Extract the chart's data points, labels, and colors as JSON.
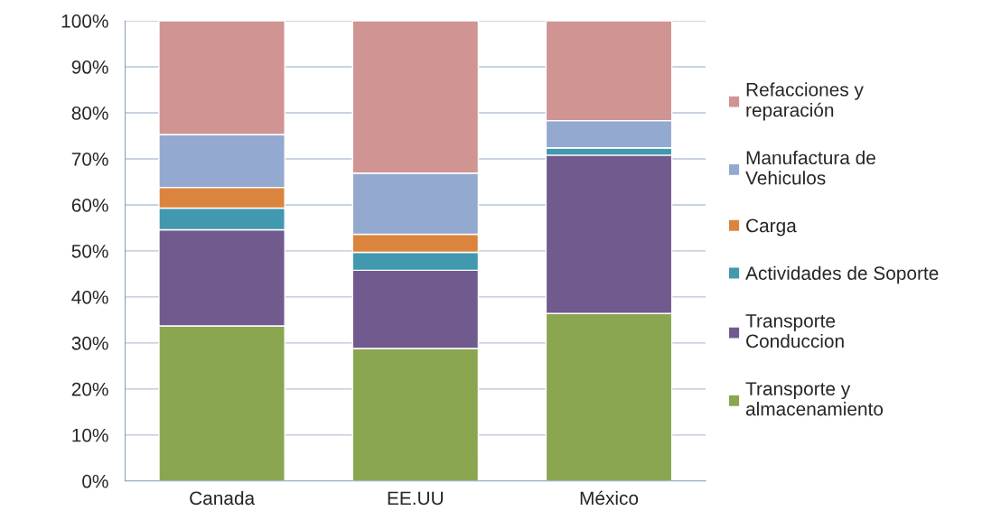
{
  "chart_data": {
    "type": "bar",
    "stacked": true,
    "categories": [
      "Canada",
      "EE.UU",
      "México"
    ],
    "series": [
      {
        "name": "Transporte y\nalmacenamiento",
        "color": "#8ba650",
        "values": [
          33.7,
          28.8,
          36.4
        ]
      },
      {
        "name": "Transporte\nConduccion",
        "color": "#715a8e",
        "values": [
          20.9,
          17.0,
          34.4
        ]
      },
      {
        "name": "Actividades de Soporte",
        "color": "#4198af",
        "values": [
          4.7,
          3.9,
          1.6
        ]
      },
      {
        "name": "Carga",
        "color": "#db843d",
        "values": [
          4.5,
          3.9,
          0
        ]
      },
      {
        "name": "Manufactura de\nVehiculos",
        "color": "#93a9cf",
        "values": [
          11.5,
          13.3,
          5.9
        ]
      },
      {
        "name": "Refacciones y\nreparación",
        "color": "#d09493",
        "values": [
          24.7,
          33.1,
          21.7
        ]
      }
    ],
    "ylim": [
      0,
      100
    ],
    "yticks": [
      {
        "value": 0,
        "label": "0%"
      },
      {
        "value": 10,
        "label": "10%"
      },
      {
        "value": 20,
        "label": "20%"
      },
      {
        "value": 30,
        "label": "30%"
      },
      {
        "value": 40,
        "label": "40%"
      },
      {
        "value": 50,
        "label": "50%"
      },
      {
        "value": 60,
        "label": "60%"
      },
      {
        "value": 70,
        "label": "70%"
      },
      {
        "value": 80,
        "label": "80%"
      },
      {
        "value": 90,
        "label": "90%"
      },
      {
        "value": 100,
        "label": "100%"
      }
    ],
    "grid": "y",
    "legend": "right"
  }
}
